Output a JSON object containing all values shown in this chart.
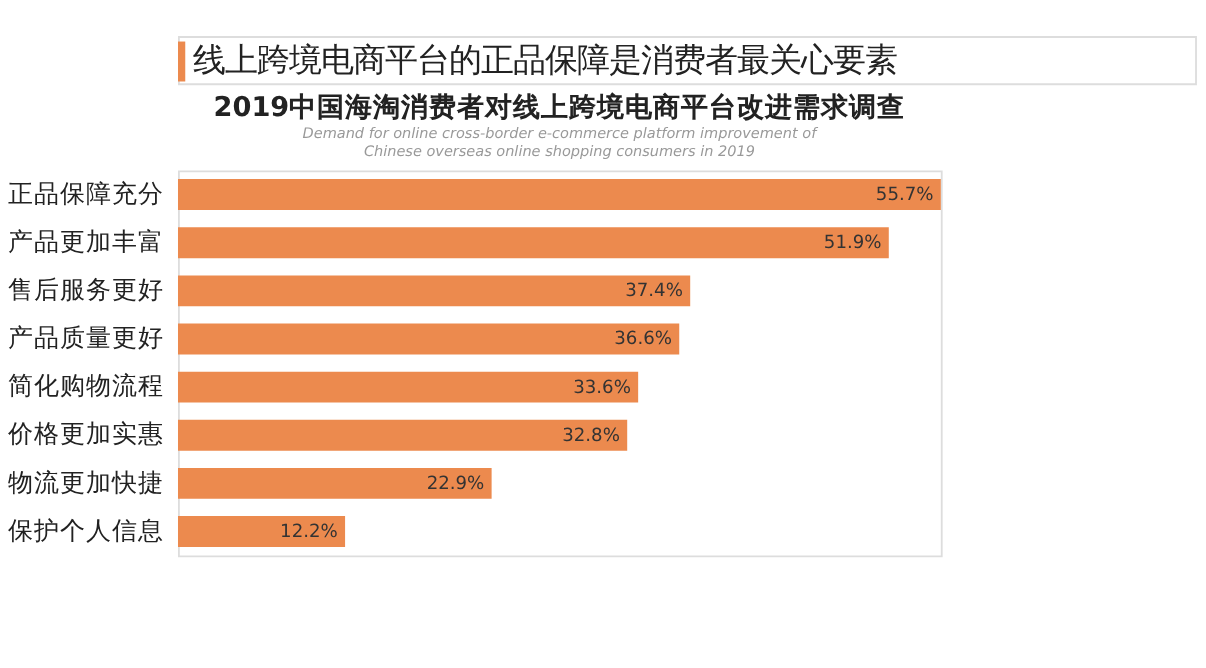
{
  "chart_data": {
    "type": "bar",
    "orientation": "horizontal",
    "title": "线上跨境电商平台的正品保障是消费者最关心要素",
    "subtitle": "2019中国海淘消费者对线上跨境电商平台改进需求调查",
    "annotations": [
      "Demand for online cross-border e-commerce platform improvement of Chinese overseas online shopping consumers in 2019"
    ],
    "categories": [
      "正品保障充分",
      "产品更加丰富",
      "售后服务更好",
      "产品质量更好",
      "简化购物流程",
      "价格更加实惠",
      "物流更加快捷",
      "保护个人信息"
    ],
    "values": [
      55.7,
      51.9,
      37.4,
      36.6,
      33.6,
      32.8,
      22.9,
      12.2
    ],
    "value_labels": [
      "55.7%",
      "51.9%",
      "37.4%",
      "36.6%",
      "33.6%",
      "32.8%",
      "22.9%",
      "12.2%"
    ],
    "color": "#ec8a4e",
    "grid": false
  }
}
